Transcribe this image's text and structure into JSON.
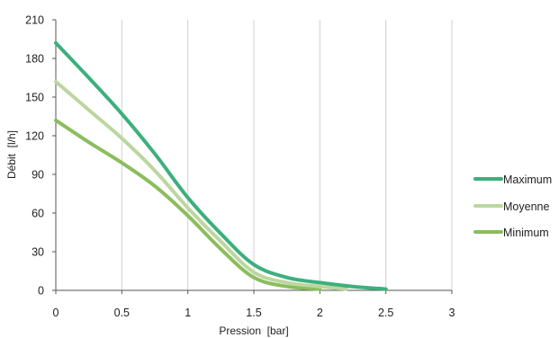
{
  "chart_data": {
    "type": "line",
    "xlabel": "Pression  [bar]",
    "ylabel": "Débit  [l/h]",
    "xlim": [
      0,
      3
    ],
    "ylim": [
      0,
      210
    ],
    "xticks": [
      0,
      0.5,
      1,
      1.5,
      2,
      2.5,
      3
    ],
    "xtick_labels": [
      "0",
      "0.5",
      "1",
      "1.5",
      "2",
      "2.5",
      "3"
    ],
    "yticks": [
      0,
      30,
      60,
      90,
      120,
      150,
      180,
      210
    ],
    "ytick_labels": [
      "0",
      "30",
      "60",
      "90",
      "120",
      "150",
      "180",
      "210"
    ],
    "grid": "vertical",
    "legend_position": "right",
    "series": [
      {
        "name": "Maximum",
        "color": "#3daf7d",
        "points": [
          [
            0,
            192
          ],
          [
            0.25,
            165
          ],
          [
            0.5,
            137
          ],
          [
            0.75,
            106
          ],
          [
            1,
            72
          ],
          [
            1.25,
            44
          ],
          [
            1.5,
            20
          ],
          [
            1.75,
            10
          ],
          [
            2,
            6
          ],
          [
            2.25,
            3
          ],
          [
            2.5,
            1
          ]
        ]
      },
      {
        "name": "Moyenne",
        "color": "#bcd6a0",
        "points": [
          [
            0,
            162
          ],
          [
            0.25,
            140
          ],
          [
            0.5,
            118
          ],
          [
            0.75,
            93
          ],
          [
            1,
            64
          ],
          [
            1.25,
            38
          ],
          [
            1.5,
            14
          ],
          [
            1.75,
            6
          ],
          [
            2,
            3
          ],
          [
            2.2,
            1
          ]
        ]
      },
      {
        "name": "Minimum",
        "color": "#8bbd5d",
        "points": [
          [
            0,
            132
          ],
          [
            0.25,
            115
          ],
          [
            0.5,
            99
          ],
          [
            0.75,
            81
          ],
          [
            1,
            58
          ],
          [
            1.25,
            32
          ],
          [
            1.5,
            10
          ],
          [
            1.75,
            3
          ],
          [
            2,
            1
          ]
        ]
      }
    ]
  }
}
